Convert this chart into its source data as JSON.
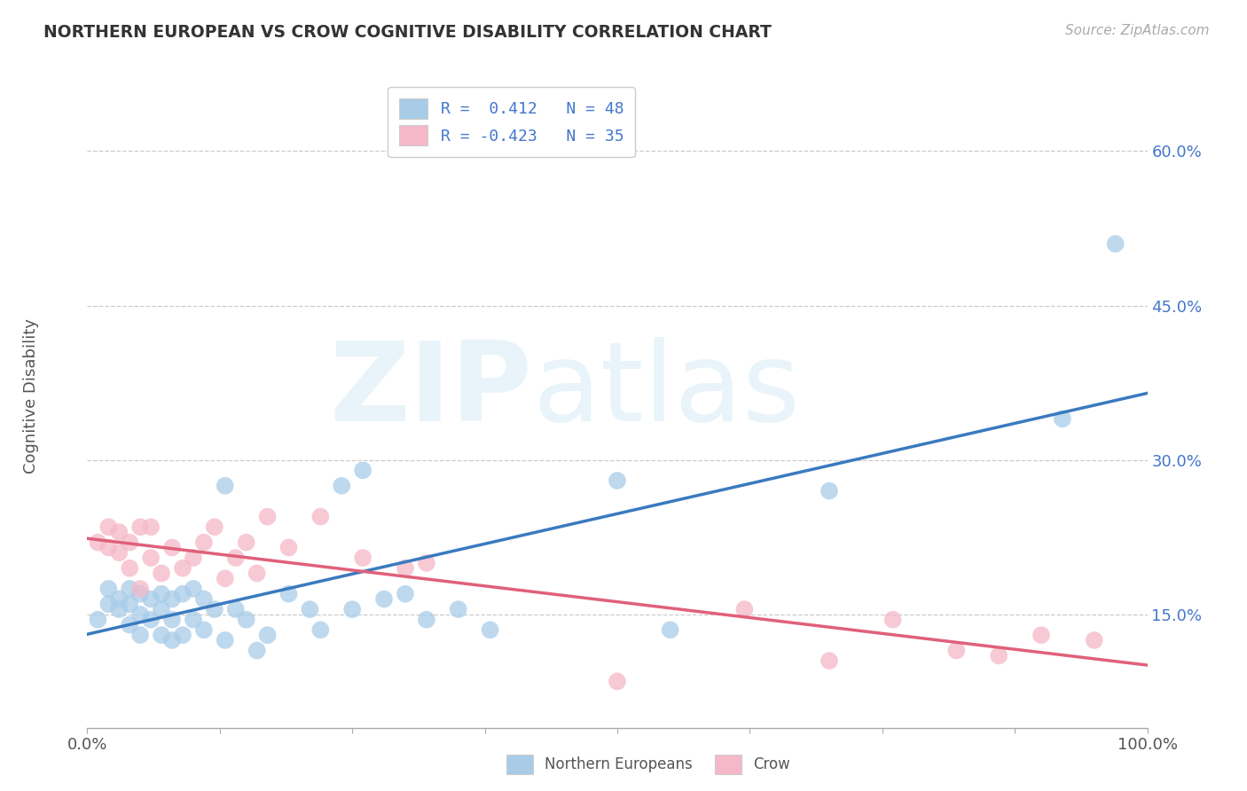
{
  "title": "NORTHERN EUROPEAN VS CROW COGNITIVE DISABILITY CORRELATION CHART",
  "source": "Source: ZipAtlas.com",
  "ylabel": "Cognitive Disability",
  "xlim": [
    0.0,
    1.0
  ],
  "ylim": [
    0.04,
    0.67
  ],
  "yticks": [
    0.15,
    0.3,
    0.45,
    0.6
  ],
  "ytick_labels": [
    "15.0%",
    "30.0%",
    "45.0%",
    "60.0%"
  ],
  "xticks": [
    0.0,
    0.125,
    0.25,
    0.375,
    0.5,
    0.625,
    0.75,
    0.875,
    1.0
  ],
  "xtick_label_0": "0.0%",
  "xtick_label_last": "100.0%",
  "blue_color": "#a8cce8",
  "pink_color": "#f5b8c8",
  "line_blue": "#3a7abf",
  "line_pink": "#e0607a",
  "text_color": "#4477cc",
  "background": "#ffffff",
  "grid_color": "#cccccc",
  "ne_points_x": [
    0.01,
    0.02,
    0.02,
    0.03,
    0.03,
    0.04,
    0.04,
    0.04,
    0.05,
    0.05,
    0.05,
    0.06,
    0.06,
    0.07,
    0.07,
    0.07,
    0.08,
    0.08,
    0.08,
    0.09,
    0.09,
    0.1,
    0.1,
    0.11,
    0.11,
    0.12,
    0.13,
    0.13,
    0.14,
    0.15,
    0.16,
    0.17,
    0.19,
    0.21,
    0.22,
    0.24,
    0.25,
    0.26,
    0.28,
    0.3,
    0.32,
    0.35,
    0.38,
    0.5,
    0.55,
    0.7,
    0.92,
    0.97
  ],
  "ne_points_y": [
    0.145,
    0.16,
    0.175,
    0.155,
    0.165,
    0.14,
    0.16,
    0.175,
    0.13,
    0.15,
    0.17,
    0.145,
    0.165,
    0.13,
    0.155,
    0.17,
    0.125,
    0.145,
    0.165,
    0.13,
    0.17,
    0.145,
    0.175,
    0.135,
    0.165,
    0.155,
    0.125,
    0.275,
    0.155,
    0.145,
    0.115,
    0.13,
    0.17,
    0.155,
    0.135,
    0.275,
    0.155,
    0.29,
    0.165,
    0.17,
    0.145,
    0.155,
    0.135,
    0.28,
    0.135,
    0.27,
    0.34,
    0.51
  ],
  "crow_points_x": [
    0.01,
    0.02,
    0.02,
    0.03,
    0.03,
    0.04,
    0.04,
    0.05,
    0.05,
    0.06,
    0.06,
    0.07,
    0.08,
    0.09,
    0.1,
    0.11,
    0.12,
    0.13,
    0.14,
    0.15,
    0.16,
    0.17,
    0.19,
    0.22,
    0.26,
    0.3,
    0.32,
    0.5,
    0.62,
    0.7,
    0.76,
    0.82,
    0.86,
    0.9,
    0.95
  ],
  "crow_points_y": [
    0.22,
    0.215,
    0.235,
    0.21,
    0.23,
    0.22,
    0.195,
    0.235,
    0.175,
    0.205,
    0.235,
    0.19,
    0.215,
    0.195,
    0.205,
    0.22,
    0.235,
    0.185,
    0.205,
    0.22,
    0.19,
    0.245,
    0.215,
    0.245,
    0.205,
    0.195,
    0.2,
    0.085,
    0.155,
    0.105,
    0.145,
    0.115,
    0.11,
    0.13,
    0.125
  ]
}
